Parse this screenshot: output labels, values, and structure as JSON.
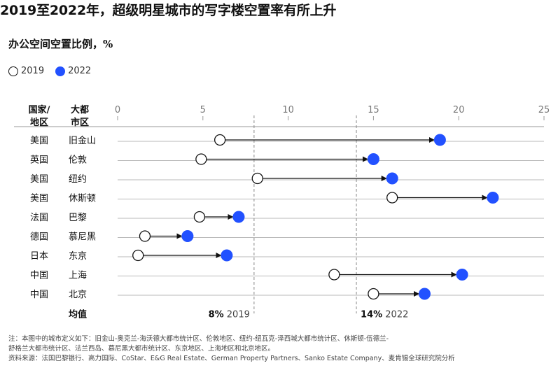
{
  "title": "2019至2022年，超级明星城市的写字楼空置率有所上升",
  "subtitle": "办公空间空置比例，%",
  "legend": {
    "open_label": "2019",
    "filled_label": "2022",
    "open_color": "#ffffff",
    "filled_color": "#2251ff"
  },
  "footnote": {
    "line1": "注：本图中的城市定义如下：旧金山-奥克兰-海沃德大都市统计区、伦敦地区、纽约-纽瓦克-泽西城大都市统计区、休斯顿-伍德兰-",
    "line2": "舒格兰大都市统计区、法兰西岛、慕尼黑大都市统计区、东京地区、上海地区和北京地区。",
    "line3": "资料来源：法国巴黎银行、高力国际、CoStar、E&G Real Estate、German Property Partners、Sanko Estate Company、麦肯锡全球研究院分析"
  },
  "chart_data": {
    "type": "dumbbell",
    "col_headers": {
      "country_line1": "国家/",
      "country_line2": "地区",
      "metro_line1": "大都",
      "metro_line2": "市区"
    },
    "xlim": [
      0,
      25
    ],
    "xticks": [
      0,
      5,
      10,
      15,
      20,
      25
    ],
    "series": [
      {
        "name": "2019",
        "values": [
          6.0,
          4.9,
          8.2,
          16.1,
          4.8,
          1.6,
          1.2,
          12.7,
          15.0
        ]
      },
      {
        "name": "2022",
        "values": [
          18.9,
          15.0,
          16.1,
          22.0,
          7.1,
          4.1,
          6.4,
          20.2,
          18.0
        ]
      }
    ],
    "rows": [
      {
        "country": "美国",
        "city": "旧金山"
      },
      {
        "country": "英国",
        "city": "伦敦"
      },
      {
        "country": "美国",
        "city": "纽约"
      },
      {
        "country": "美国",
        "city": "休斯顿"
      },
      {
        "country": "法国",
        "city": "巴黎"
      },
      {
        "country": "德国",
        "city": "慕尼黑"
      },
      {
        "country": "日本",
        "city": "东京"
      },
      {
        "country": "中国",
        "city": "上海"
      },
      {
        "country": "中国",
        "city": "北京"
      }
    ],
    "average": {
      "label": "均值",
      "v2019": 8,
      "v2022": 14,
      "text2019_value": "8%",
      "text2019_year": "2019",
      "text2022_value": "14%",
      "text2022_year": "2022"
    },
    "colors": {
      "filled": "#2251ff",
      "grid": "#b9b9b9",
      "connector": "#111111"
    }
  }
}
